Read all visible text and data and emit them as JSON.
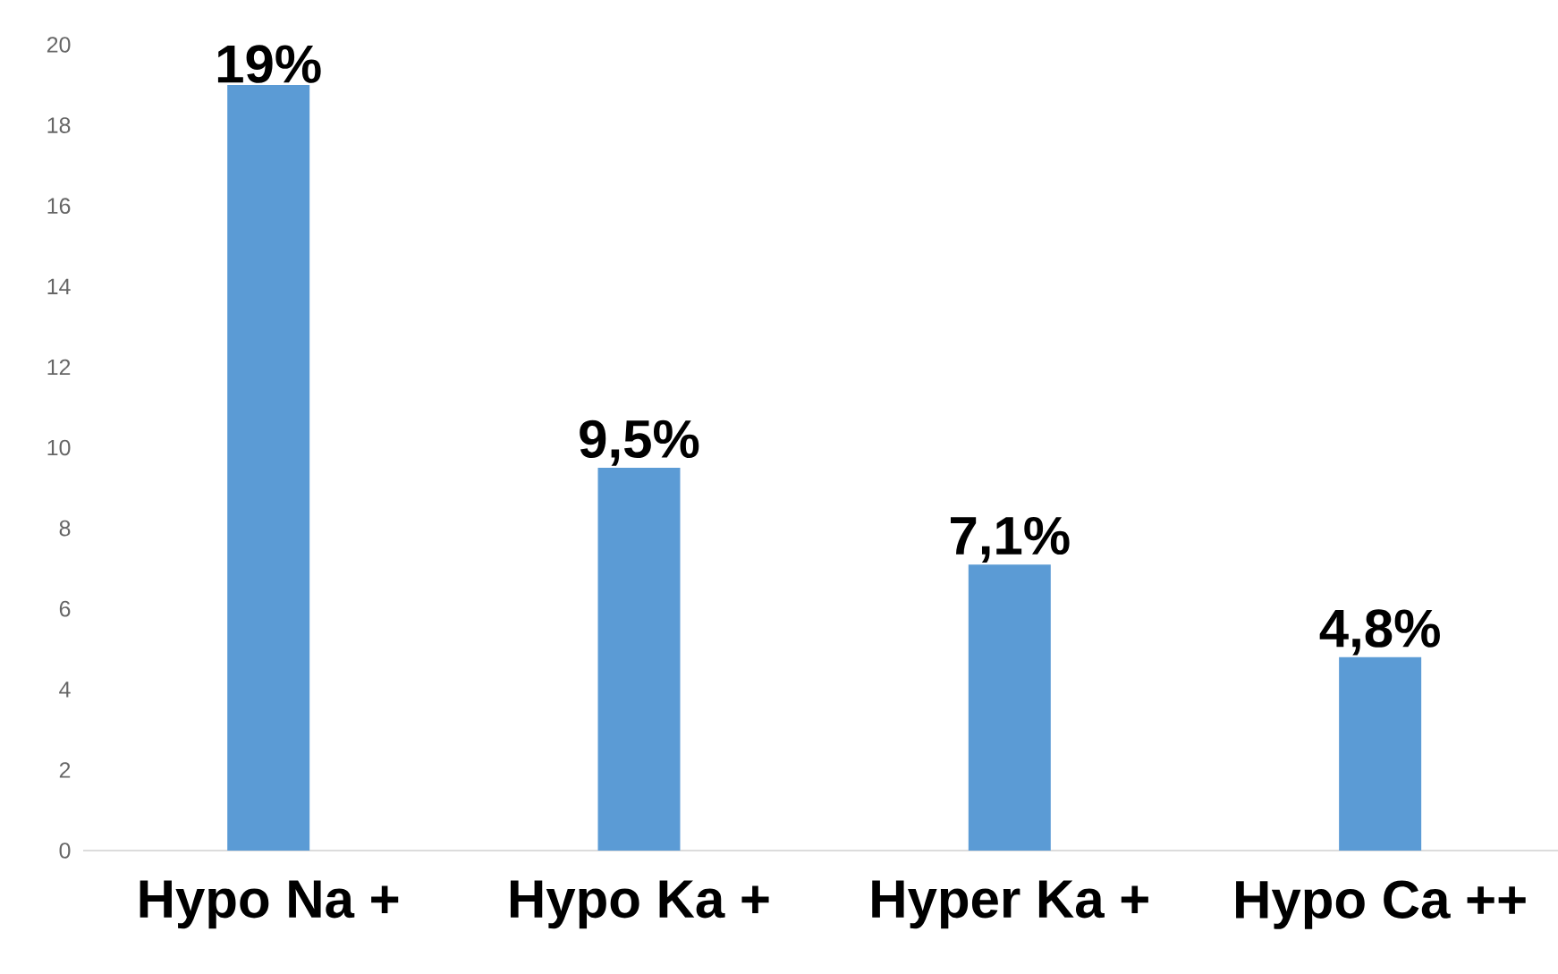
{
  "chart_data": {
    "type": "bar",
    "categories": [
      "Hypo Na +",
      "Hypo Ka +",
      "Hyper Ka +",
      "Hypo Ca ++"
    ],
    "values": [
      19,
      9.5,
      7.1,
      4.8
    ],
    "value_labels": [
      "19%",
      "9,5%",
      "7,1%",
      "4,8%"
    ],
    "color": "#5b9bd5",
    "ylim": [
      0,
      20
    ],
    "yticks": [
      0,
      2,
      4,
      6,
      8,
      10,
      12,
      14,
      16,
      18,
      20
    ]
  }
}
